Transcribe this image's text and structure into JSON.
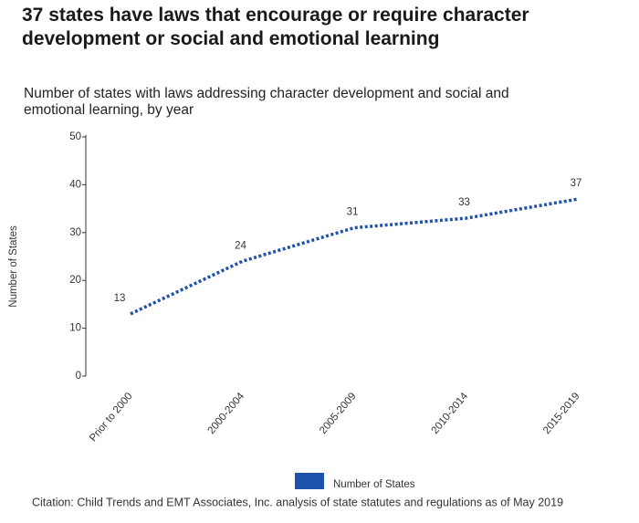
{
  "chart_data": {
    "type": "line",
    "title": "37 states have laws that encourage or require character development or social and emotional learning",
    "subtitle": "Number of states with laws addressing character development and social and emotional learning, by year",
    "ylabel": "Number of States",
    "categories": [
      "Prior to 2000",
      "2000-2004",
      "2005-2009",
      "2010-2014",
      "2015-2019"
    ],
    "series": [
      {
        "name": "Number of States",
        "color": "#1f52ab",
        "values": [
          13,
          24,
          31,
          33,
          37
        ]
      }
    ],
    "ylim": [
      0,
      50
    ],
    "yticks": [
      0,
      10,
      20,
      30,
      40,
      50
    ],
    "citation": "Citation: Child Trends and EMT Associates, Inc. analysis of state statutes and regulations as of May 2019"
  }
}
